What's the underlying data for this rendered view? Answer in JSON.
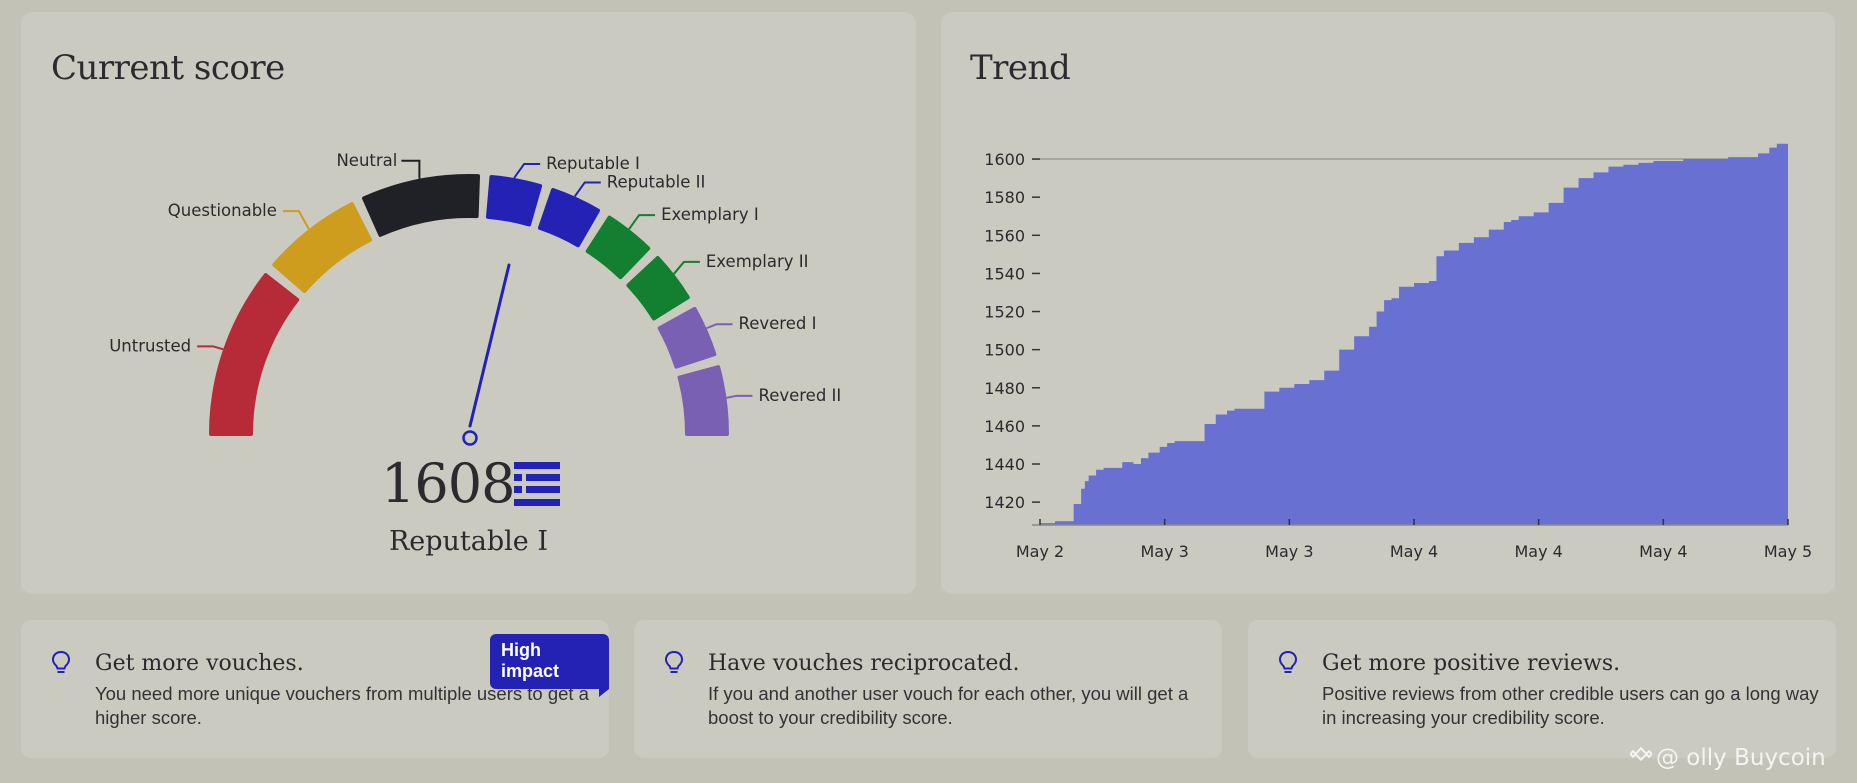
{
  "score_card": {
    "title": "Current score",
    "score": "1608",
    "level": "Reputable I",
    "needle_value": 1608,
    "segments": [
      {
        "label": "Untrusted",
        "color": "#b72b38"
      },
      {
        "label": "Questionable",
        "color": "#cf9d1e"
      },
      {
        "label": "Neutral",
        "color": "#202126"
      },
      {
        "label": "Reputable I",
        "color": "#2322b5"
      },
      {
        "label": "Reputable II",
        "color": "#2322b5"
      },
      {
        "label": "Exemplary I",
        "color": "#127f31"
      },
      {
        "label": "Exemplary II",
        "color": "#127f31"
      },
      {
        "label": "Revered I",
        "color": "#7a60b3"
      },
      {
        "label": "Revered II",
        "color": "#7a60b3"
      }
    ],
    "logo_icon": "ethos-logo-icon"
  },
  "trend_card": {
    "title": "Trend",
    "chart_data": {
      "type": "area",
      "title": "",
      "xlabel": "",
      "ylabel": "",
      "x_ticks": [
        "May 2",
        "May 3",
        "May 3",
        "May 4",
        "May 4",
        "May 4",
        "May 5"
      ],
      "y_ticks": [
        1420,
        1440,
        1460,
        1480,
        1500,
        1520,
        1540,
        1560,
        1580,
        1600
      ],
      "ylim": [
        1408,
        1610
      ],
      "reference_line": 1600,
      "fill_color": "#6870d2",
      "series": [
        {
          "x": [
            0,
            0.02,
            0.035,
            0.045,
            0.055,
            0.06,
            0.065,
            0.075,
            0.085,
            0.095,
            0.11,
            0.125,
            0.135,
            0.145,
            0.16,
            0.17,
            0.18,
            0.2,
            0.22,
            0.235,
            0.25,
            0.26,
            0.28,
            0.3,
            0.32,
            0.33,
            0.34,
            0.36,
            0.38,
            0.4,
            0.42,
            0.44,
            0.45,
            0.46,
            0.47,
            0.48,
            0.5,
            0.52,
            0.53,
            0.54,
            0.56,
            0.58,
            0.6,
            0.62,
            0.63,
            0.64,
            0.66,
            0.68,
            0.7,
            0.72,
            0.74,
            0.76,
            0.78,
            0.8,
            0.82,
            0.84,
            0.86,
            0.88,
            0.9,
            0.92,
            0.94,
            0.96,
            0.975,
            0.985,
            1.0
          ],
          "values": [
            1409,
            1410,
            1410,
            1419,
            1427,
            1431,
            1434,
            1437,
            1438,
            1438,
            1441,
            1440,
            1443,
            1446,
            1449,
            1451,
            1452,
            1452,
            1461,
            1466,
            1468,
            1469,
            1469,
            1478,
            1480,
            1480,
            1482,
            1484,
            1489,
            1500,
            1507,
            1512,
            1520,
            1526,
            1527,
            1533,
            1535,
            1536,
            1549,
            1552,
            1556,
            1559,
            1563,
            1567,
            1568,
            1570,
            1572,
            1577,
            1585,
            1590,
            1593,
            1596,
            1597,
            1598,
            1599,
            1599,
            1600,
            1600,
            1600,
            1601,
            1601,
            1603,
            1606,
            1608,
            1608
          ]
        }
      ]
    }
  },
  "tips": [
    {
      "title": "Get more vouches.",
      "description": "You need more unique vouchers from multiple users to get a higher score.",
      "badge": "High impact",
      "icon": "lightbulb-icon"
    },
    {
      "title": "Have vouches reciprocated.",
      "description": "If you and another user vouch for each other, you will get a boost to your credibility score.",
      "icon": "lightbulb-icon"
    },
    {
      "title": "Get more positive reviews.",
      "description": "Positive reviews from other credible users can go a long way in increasing your credibility score.",
      "icon": "lightbulb-icon"
    }
  ],
  "watermark": {
    "text": "@    olly Buycoin",
    "icon": "binance-logo-icon"
  }
}
